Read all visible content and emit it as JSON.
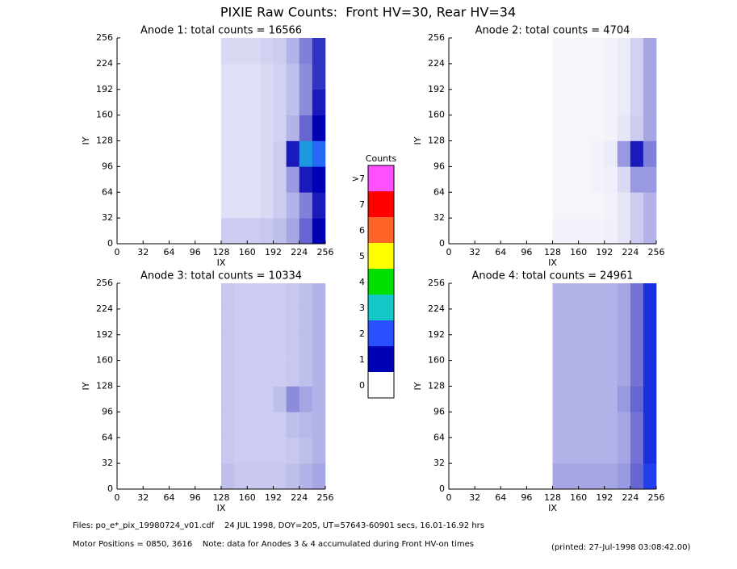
{
  "title": "PIXIE Raw Counts:  Front HV=30, Rear HV=34",
  "chart_data": [
    {
      "type": "heatmap",
      "title": "Anode 1: total counts = 16566",
      "xlabel": "IX",
      "ylabel": "IY",
      "xlim": [
        0,
        256
      ],
      "ylim": [
        0,
        256
      ],
      "xticks": [
        0,
        32,
        64,
        96,
        128,
        160,
        192,
        224,
        256
      ],
      "yticks": [
        0,
        32,
        64,
        96,
        128,
        160,
        192,
        224,
        256
      ],
      "xbins": [
        128,
        144,
        160,
        176,
        192,
        208,
        224,
        240,
        256
      ],
      "ybins": [
        0,
        32,
        64,
        96,
        128,
        160,
        192,
        224,
        256
      ],
      "z": [
        [
          0.2,
          0.2,
          0.2,
          0.22,
          0.25,
          0.35,
          0.6,
          1.0
        ],
        [
          0.12,
          0.12,
          0.12,
          0.15,
          0.2,
          0.3,
          0.5,
          0.9
        ],
        [
          0.12,
          0.12,
          0.12,
          0.15,
          0.2,
          0.4,
          0.9,
          1.0
        ],
        [
          0.12,
          0.12,
          0.12,
          0.15,
          0.2,
          0.9,
          2.6,
          2.2
        ],
        [
          0.12,
          0.12,
          0.12,
          0.15,
          0.18,
          0.3,
          0.6,
          1.0
        ],
        [
          0.12,
          0.12,
          0.12,
          0.15,
          0.18,
          0.25,
          0.45,
          0.9
        ],
        [
          0.12,
          0.12,
          0.12,
          0.15,
          0.18,
          0.25,
          0.45,
          0.8
        ],
        [
          0.15,
          0.15,
          0.15,
          0.18,
          0.2,
          0.3,
          0.5,
          0.8
        ]
      ]
    },
    {
      "type": "heatmap",
      "title": "Anode 2: total counts = 4704",
      "xlabel": "IX",
      "ylabel": "IY",
      "xlim": [
        0,
        256
      ],
      "ylim": [
        0,
        256
      ],
      "xticks": [
        0,
        32,
        64,
        96,
        128,
        160,
        192,
        224,
        256
      ],
      "yticks": [
        0,
        32,
        64,
        96,
        128,
        160,
        192,
        224,
        256
      ],
      "xbins": [
        128,
        144,
        160,
        176,
        192,
        208,
        224,
        240,
        256
      ],
      "ybins": [
        0,
        32,
        64,
        96,
        128,
        160,
        192,
        224,
        256
      ],
      "z": [
        [
          0.05,
          0.05,
          0.05,
          0.05,
          0.06,
          0.1,
          0.2,
          0.3
        ],
        [
          0.04,
          0.04,
          0.04,
          0.04,
          0.05,
          0.1,
          0.2,
          0.3
        ],
        [
          0.04,
          0.04,
          0.04,
          0.05,
          0.06,
          0.15,
          0.4,
          0.4
        ],
        [
          0.04,
          0.04,
          0.04,
          0.05,
          0.08,
          0.4,
          0.9,
          0.5
        ],
        [
          0.04,
          0.04,
          0.04,
          0.04,
          0.05,
          0.1,
          0.2,
          0.35
        ],
        [
          0.04,
          0.04,
          0.04,
          0.04,
          0.05,
          0.08,
          0.18,
          0.35
        ],
        [
          0.04,
          0.04,
          0.04,
          0.04,
          0.05,
          0.08,
          0.18,
          0.35
        ],
        [
          0.04,
          0.04,
          0.04,
          0.04,
          0.05,
          0.08,
          0.18,
          0.35
        ]
      ]
    },
    {
      "type": "heatmap",
      "title": "Anode 3: total counts = 10334",
      "xlabel": "IX",
      "ylabel": "IY",
      "xlim": [
        0,
        256
      ],
      "ylim": [
        0,
        256
      ],
      "xticks": [
        0,
        32,
        64,
        96,
        128,
        160,
        192,
        224,
        256
      ],
      "yticks": [
        0,
        32,
        64,
        96,
        128,
        160,
        192,
        224,
        256
      ],
      "xbins": [
        128,
        144,
        160,
        176,
        192,
        208,
        224,
        240,
        256
      ],
      "ybins": [
        0,
        32,
        64,
        96,
        128,
        160,
        192,
        224,
        256
      ],
      "z": [
        [
          0.25,
          0.22,
          0.22,
          0.22,
          0.22,
          0.25,
          0.3,
          0.35
        ],
        [
          0.22,
          0.2,
          0.2,
          0.2,
          0.2,
          0.22,
          0.25,
          0.3
        ],
        [
          0.22,
          0.2,
          0.2,
          0.2,
          0.2,
          0.25,
          0.28,
          0.3
        ],
        [
          0.22,
          0.2,
          0.2,
          0.2,
          0.25,
          0.45,
          0.35,
          0.3
        ],
        [
          0.22,
          0.2,
          0.2,
          0.2,
          0.2,
          0.22,
          0.25,
          0.3
        ],
        [
          0.22,
          0.2,
          0.2,
          0.2,
          0.2,
          0.22,
          0.25,
          0.3
        ],
        [
          0.22,
          0.2,
          0.2,
          0.2,
          0.2,
          0.22,
          0.25,
          0.3
        ],
        [
          0.22,
          0.2,
          0.2,
          0.2,
          0.2,
          0.22,
          0.25,
          0.3
        ]
      ]
    },
    {
      "type": "heatmap",
      "title": "Anode 4: total counts = 24961",
      "xlabel": "IX",
      "ylabel": "IY",
      "xlim": [
        0,
        256
      ],
      "ylim": [
        0,
        256
      ],
      "xticks": [
        0,
        32,
        64,
        96,
        128,
        160,
        192,
        224,
        256
      ],
      "yticks": [
        0,
        32,
        64,
        96,
        128,
        160,
        192,
        224,
        256
      ],
      "xbins": [
        128,
        144,
        160,
        176,
        192,
        208,
        224,
        240,
        256
      ],
      "ybins": [
        0,
        32,
        64,
        96,
        128,
        160,
        192,
        224,
        256
      ],
      "z": [
        [
          0.35,
          0.35,
          0.35,
          0.35,
          0.35,
          0.4,
          0.6,
          1.8
        ],
        [
          0.3,
          0.3,
          0.3,
          0.3,
          0.3,
          0.35,
          0.55,
          1.6
        ],
        [
          0.3,
          0.3,
          0.3,
          0.3,
          0.3,
          0.35,
          0.55,
          1.6
        ],
        [
          0.3,
          0.3,
          0.3,
          0.3,
          0.3,
          0.4,
          0.6,
          1.6
        ],
        [
          0.3,
          0.3,
          0.3,
          0.3,
          0.3,
          0.35,
          0.55,
          1.6
        ],
        [
          0.3,
          0.3,
          0.3,
          0.3,
          0.3,
          0.35,
          0.55,
          1.6
        ],
        [
          0.3,
          0.3,
          0.3,
          0.3,
          0.3,
          0.35,
          0.55,
          1.6
        ],
        [
          0.3,
          0.3,
          0.3,
          0.3,
          0.3,
          0.35,
          0.55,
          1.6
        ]
      ]
    }
  ],
  "colorbar": {
    "title": "Counts",
    "labels": [
      "0",
      "1",
      "2",
      "3",
      "4",
      "5",
      "6",
      "7",
      ">7"
    ],
    "colors": [
      "#ffffff",
      "#0000b4",
      "#2850ff",
      "#14c8c8",
      "#00e000",
      "#ffff00",
      "#ff6428",
      "#ff0000",
      "#ff50ff"
    ]
  },
  "footer": {
    "files": "Files: po_e*_pix_19980724_v01.cdf    24 JUL 1998, DOY=205, UT=57643-60901 secs, 16.01-16.92 hrs",
    "motor": "Motor Positions = 0850, 3616    Note: data for Anodes 3 & 4 accumulated during Front HV-on times",
    "printed": "(printed: 27-Jul-1998 03:08:42.00)"
  }
}
